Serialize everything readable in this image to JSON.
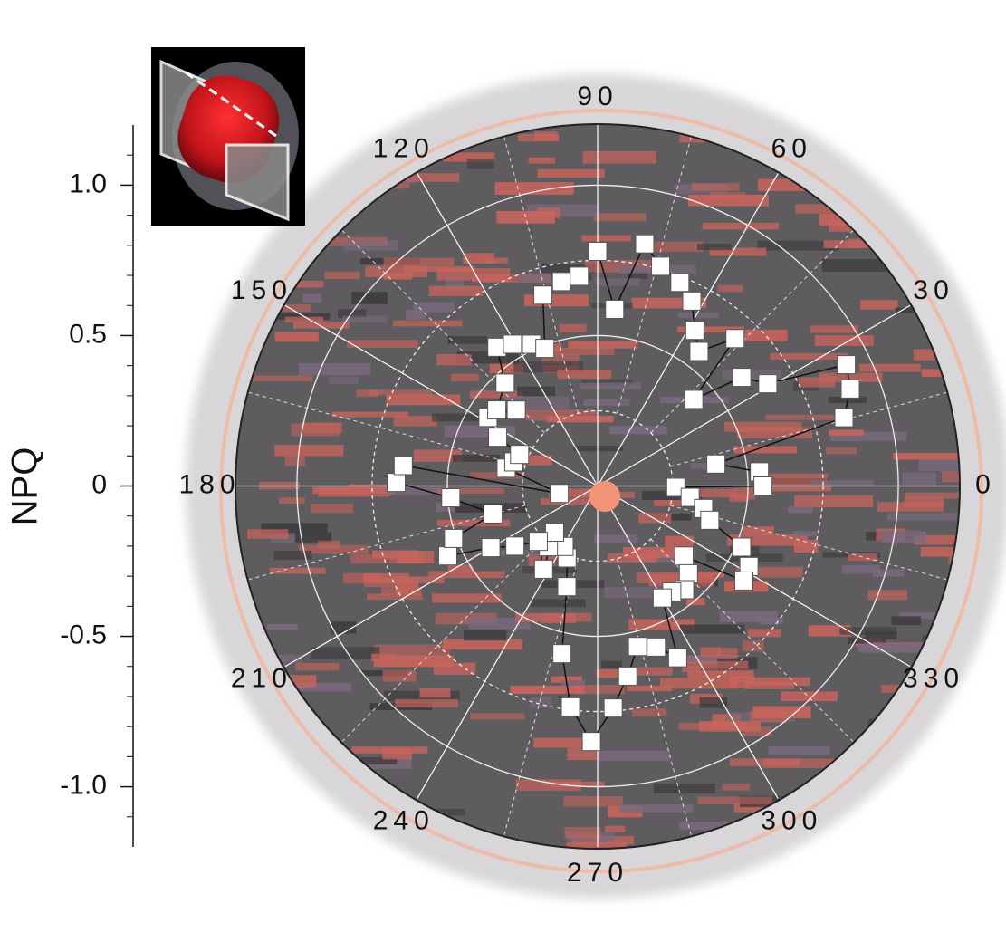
{
  "chart_data": {
    "type": "polar-scatter",
    "y_label": "NPQ",
    "ylim": [
      -1.2,
      1.2
    ],
    "yticks": [
      {
        "value": 1,
        "label": "1.0"
      },
      {
        "value": 0.5,
        "label": "0.5"
      },
      0,
      {
        "value": -0.5,
        "label": "-0.5"
      },
      {
        "value": -1,
        "label": "-1.0"
      }
    ],
    "y_minor_ticks": [
      -1.1,
      -0.9,
      -0.8,
      -0.7,
      -0.6,
      -0.4,
      -0.3,
      -0.2,
      -0.1,
      0.1,
      0.2,
      0.3,
      0.4,
      0.6,
      0.7,
      0.8,
      0.9,
      1.1
    ],
    "rlim": [
      0,
      1.2
    ],
    "rticks": [
      0.25,
      0.5,
      0.75,
      1
    ],
    "angle_ticks": [
      0,
      30,
      60,
      90,
      120,
      150,
      180,
      210,
      240,
      270,
      300,
      330
    ],
    "series": [
      {
        "color": "#ffffff",
        "theta": [
          90,
          84.5,
          79,
          74,
          68,
          63,
          58,
          53,
          47,
          42,
          37,
          31,
          26,
          21,
          15.5,
          10.5,
          5,
          0,
          359,
          353,
          348,
          343,
          337,
          332,
          327,
          321,
          316,
          310,
          305,
          300,
          295,
          290,
          284,
          279,
          274,
          268.6,
          263,
          258,
          253,
          247,
          241,
          231,
          227,
          237,
          223,
          216,
          210,
          205,
          200,
          195,
          184.6,
          179,
          174,
          191,
          169,
          164,
          158,
          154,
          148,
          137,
          143,
          132,
          126,
          121,
          115,
          111,
          106,
          100,
          95
        ],
        "r": [
          0.78,
          0.59,
          0.82,
          0.76,
          0.73,
          0.69,
          0.61,
          0.56,
          0.67,
          0.43,
          0.6,
          0.66,
          0.92,
          0.9,
          0.85,
          0.4,
          0.54,
          0.55,
          0.26,
          0.31,
          0.36,
          0.39,
          0.52,
          0.57,
          0.58,
          0.37,
          0.42,
          0.45,
          0.43,
          0.43,
          0.63,
          0.57,
          0.55,
          0.64,
          0.74,
          0.85,
          0.74,
          0.57,
          0.35,
          0.26,
          0.23,
          0.26,
          0.21,
          0.33,
          0.27,
          0.34,
          0.41,
          0.55,
          0.51,
          0.36,
          0.49,
          0.67,
          0.65,
          0.13,
          0.31,
          0.29,
          0.28,
          0.37,
          0.43,
          0.37,
          0.42,
          0.46,
          0.57,
          0.55,
          0.52,
          0.49,
          0.66,
          0.69,
          0.7
        ]
      }
    ]
  }
}
